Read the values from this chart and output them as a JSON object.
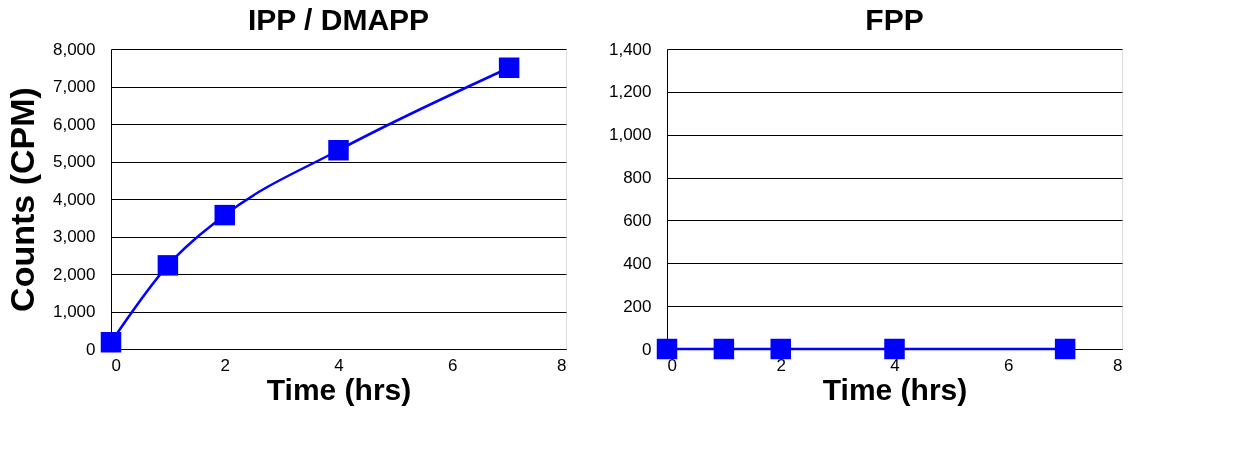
{
  "chart_data": [
    {
      "type": "line",
      "title": "IPP / DMAPP",
      "xlabel": "Time (hrs)",
      "ylabel": "Counts (CPM)",
      "x": [
        0,
        1,
        2,
        4,
        7
      ],
      "series": [
        {
          "color": "#0000ff",
          "values": [
            180,
            2230,
            3570,
            5300,
            7500
          ]
        }
      ],
      "xlim": [
        0,
        8
      ],
      "xticks": [
        0,
        2,
        4,
        6,
        8
      ],
      "ylim": [
        0,
        8000
      ],
      "yticks": [
        0,
        {
          "value": 1000,
          "label": "1,000"
        },
        {
          "value": 2000,
          "label": "2,000"
        },
        {
          "value": 3000,
          "label": "3,000"
        },
        {
          "value": 4000,
          "label": "4,000"
        },
        {
          "value": 5000,
          "label": "5,000"
        },
        {
          "value": 6000,
          "label": "6,000"
        },
        {
          "value": 7000,
          "label": "7,000"
        },
        {
          "value": 8000,
          "label": "8,000"
        }
      ],
      "grid": "y",
      "marker": "square",
      "line_style": "solid"
    },
    {
      "type": "line",
      "title": "FPP",
      "xlabel": "Time (hrs)",
      "x": [
        0,
        1,
        2,
        4,
        7
      ],
      "series": [
        {
          "color": "#0000ff",
          "values": [
            0,
            0,
            0,
            0,
            0
          ]
        }
      ],
      "xlim": [
        0,
        8
      ],
      "xticks": [
        0,
        2,
        4,
        6,
        8
      ],
      "ylim": [
        0,
        1400
      ],
      "yticks": [
        0,
        200,
        400,
        600,
        800,
        {
          "value": 1000,
          "label": "1,000"
        },
        {
          "value": 1200,
          "label": "1,200"
        },
        {
          "value": 1400,
          "label": "1,400"
        }
      ],
      "grid": "y",
      "marker": "square",
      "line_style": "solid"
    }
  ]
}
